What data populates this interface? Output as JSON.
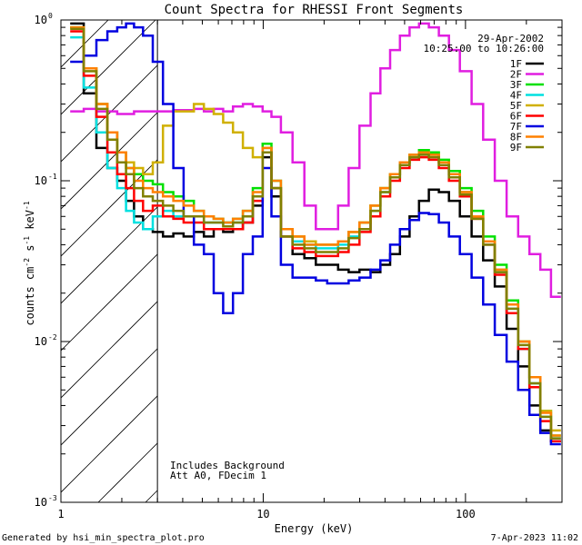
{
  "chart_data": {
    "type": "line",
    "title": "Count Spectra for RHESSI Front Segments",
    "xlabel": "Energy (keV)",
    "ylabel_parts": [
      "counts cm",
      "-2",
      " s",
      "-1",
      " keV",
      "-1"
    ],
    "xscale": "log",
    "yscale": "log",
    "xlim": [
      1,
      300
    ],
    "ylim": [
      0.001,
      1
    ],
    "x_ticks": [
      {
        "value": 10,
        "label": "10"
      },
      {
        "value": 100,
        "label": "100"
      }
    ],
    "x_tick_label_one": "1",
    "y_ticks": [
      {
        "value": 1,
        "base": "10",
        "exp": "0"
      },
      {
        "value": 0.1,
        "base": "10",
        "exp": "-1"
      },
      {
        "value": 0.01,
        "base": "10",
        "exp": "-2"
      },
      {
        "value": 0.001,
        "base": "10",
        "exp": "-3"
      }
    ],
    "shaded_region": {
      "from_energy": 1,
      "to_energy": 3,
      "style": "diagonal hatch"
    },
    "date": "29-Apr-2002",
    "time_range": "10:25:00 to 10:26:00",
    "annotations": [
      "Includes Background",
      "Att A0, FDecim 1"
    ],
    "legend_position": "top-right",
    "energies": [
      1.2,
      1.4,
      1.6,
      1.8,
      2.0,
      2.2,
      2.4,
      2.7,
      3.0,
      3.4,
      3.8,
      4.3,
      4.8,
      5.4,
      6.0,
      6.7,
      7.5,
      8.4,
      9.4,
      10.5,
      11.5,
      13,
      15,
      17,
      19.5,
      22,
      25,
      28,
      32,
      36,
      40,
      45,
      50,
      56,
      62,
      70,
      78,
      88,
      100,
      115,
      130,
      150,
      170,
      195,
      220,
      250,
      280
    ],
    "series": [
      {
        "name": "1F",
        "color": "#000000",
        "values": [
          0.95,
          0.35,
          0.16,
          0.12,
          0.1,
          0.075,
          0.06,
          0.05,
          0.048,
          0.045,
          0.047,
          0.045,
          0.048,
          0.045,
          0.05,
          0.048,
          0.05,
          0.055,
          0.07,
          0.14,
          0.08,
          0.045,
          0.035,
          0.033,
          0.03,
          0.03,
          0.028,
          0.027,
          0.028,
          0.027,
          0.03,
          0.035,
          0.045,
          0.06,
          0.075,
          0.088,
          0.085,
          0.075,
          0.06,
          0.045,
          0.032,
          0.022,
          0.012,
          0.007,
          0.004,
          0.0028,
          0.0024
        ]
      },
      {
        "name": "2F",
        "color": "#e01ee0",
        "values": [
          0.27,
          0.28,
          0.27,
          0.27,
          0.26,
          0.26,
          0.27,
          0.27,
          0.27,
          0.27,
          0.275,
          0.275,
          0.28,
          0.27,
          0.28,
          0.27,
          0.29,
          0.3,
          0.29,
          0.27,
          0.25,
          0.2,
          0.13,
          0.07,
          0.05,
          0.05,
          0.07,
          0.12,
          0.22,
          0.35,
          0.5,
          0.65,
          0.8,
          0.9,
          0.95,
          0.9,
          0.8,
          0.65,
          0.48,
          0.3,
          0.18,
          0.1,
          0.06,
          0.045,
          0.035,
          0.028,
          0.019
        ]
      },
      {
        "name": "3F",
        "color": "#00e000",
        "values": [
          0.9,
          0.5,
          0.3,
          0.2,
          0.15,
          0.12,
          0.11,
          0.1,
          0.095,
          0.085,
          0.08,
          0.075,
          0.065,
          0.06,
          0.058,
          0.055,
          0.058,
          0.065,
          0.09,
          0.17,
          0.1,
          0.05,
          0.045,
          0.04,
          0.04,
          0.04,
          0.042,
          0.048,
          0.055,
          0.07,
          0.09,
          0.11,
          0.13,
          0.145,
          0.155,
          0.15,
          0.135,
          0.115,
          0.09,
          0.065,
          0.045,
          0.03,
          0.018,
          0.01,
          0.006,
          0.0037,
          0.0026
        ]
      },
      {
        "name": "4F",
        "color": "#00e0e0",
        "values": [
          0.78,
          0.38,
          0.2,
          0.12,
          0.09,
          0.065,
          0.055,
          0.05,
          0.06,
          0.065,
          0.06,
          0.06,
          0.06,
          0.055,
          0.055,
          0.055,
          0.055,
          0.06,
          0.08,
          0.16,
          0.09,
          0.05,
          0.042,
          0.04,
          0.038,
          0.038,
          0.04,
          0.045,
          0.05,
          0.065,
          0.085,
          0.105,
          0.125,
          0.14,
          0.148,
          0.145,
          0.13,
          0.11,
          0.085,
          0.06,
          0.04,
          0.027,
          0.016,
          0.009,
          0.0055,
          0.0034,
          0.0025
        ]
      },
      {
        "name": "5F",
        "color": "#d0b000",
        "values": [
          0.9,
          0.5,
          0.3,
          0.2,
          0.15,
          0.13,
          0.12,
          0.11,
          0.13,
          0.22,
          0.27,
          0.27,
          0.3,
          0.28,
          0.26,
          0.23,
          0.2,
          0.16,
          0.14,
          0.16,
          0.09,
          0.05,
          0.045,
          0.042,
          0.04,
          0.04,
          0.042,
          0.048,
          0.055,
          0.07,
          0.09,
          0.11,
          0.13,
          0.145,
          0.15,
          0.145,
          0.13,
          0.11,
          0.085,
          0.06,
          0.042,
          0.028,
          0.017,
          0.01,
          0.006,
          0.0037,
          0.0028
        ]
      },
      {
        "name": "6F",
        "color": "#ff0000",
        "values": [
          0.85,
          0.45,
          0.25,
          0.15,
          0.11,
          0.09,
          0.075,
          0.065,
          0.07,
          0.06,
          0.058,
          0.055,
          0.055,
          0.05,
          0.05,
          0.05,
          0.05,
          0.055,
          0.075,
          0.15,
          0.09,
          0.045,
          0.038,
          0.036,
          0.034,
          0.034,
          0.036,
          0.04,
          0.048,
          0.06,
          0.08,
          0.1,
          0.12,
          0.135,
          0.14,
          0.135,
          0.12,
          0.1,
          0.08,
          0.058,
          0.04,
          0.026,
          0.015,
          0.009,
          0.0052,
          0.0032,
          0.0024
        ]
      },
      {
        "name": "7F",
        "color": "#0000e0",
        "values": [
          0.55,
          0.6,
          0.75,
          0.85,
          0.9,
          0.95,
          0.9,
          0.8,
          0.55,
          0.3,
          0.12,
          0.06,
          0.04,
          0.035,
          0.02,
          0.015,
          0.02,
          0.035,
          0.045,
          0.12,
          0.06,
          0.03,
          0.025,
          0.025,
          0.024,
          0.023,
          0.023,
          0.024,
          0.025,
          0.028,
          0.032,
          0.04,
          0.05,
          0.057,
          0.063,
          0.062,
          0.055,
          0.045,
          0.035,
          0.025,
          0.017,
          0.011,
          0.0075,
          0.005,
          0.0035,
          0.0027,
          0.0023
        ]
      },
      {
        "name": "8F",
        "color": "#ff8000",
        "values": [
          0.9,
          0.5,
          0.3,
          0.2,
          0.15,
          0.12,
          0.1,
          0.09,
          0.085,
          0.08,
          0.075,
          0.07,
          0.065,
          0.06,
          0.058,
          0.055,
          0.058,
          0.065,
          0.085,
          0.16,
          0.1,
          0.05,
          0.045,
          0.04,
          0.04,
          0.04,
          0.042,
          0.048,
          0.055,
          0.07,
          0.09,
          0.11,
          0.13,
          0.145,
          0.15,
          0.145,
          0.13,
          0.11,
          0.085,
          0.06,
          0.042,
          0.028,
          0.017,
          0.01,
          0.006,
          0.0036,
          0.0026
        ]
      },
      {
        "name": "9F",
        "color": "#808000",
        "values": [
          0.88,
          0.48,
          0.28,
          0.18,
          0.13,
          0.11,
          0.09,
          0.08,
          0.075,
          0.07,
          0.065,
          0.06,
          0.06,
          0.055,
          0.055,
          0.052,
          0.055,
          0.06,
          0.08,
          0.15,
          0.09,
          0.045,
          0.04,
          0.038,
          0.036,
          0.036,
          0.038,
          0.044,
          0.05,
          0.065,
          0.085,
          0.105,
          0.125,
          0.14,
          0.145,
          0.14,
          0.125,
          0.105,
          0.082,
          0.058,
          0.04,
          0.027,
          0.016,
          0.0095,
          0.0055,
          0.0034,
          0.0025
        ]
      }
    ]
  },
  "footer": {
    "generated_by": "Generated by hsi_min_spectra_plot.pro",
    "timestamp": "7-Apr-2023 11:02"
  }
}
